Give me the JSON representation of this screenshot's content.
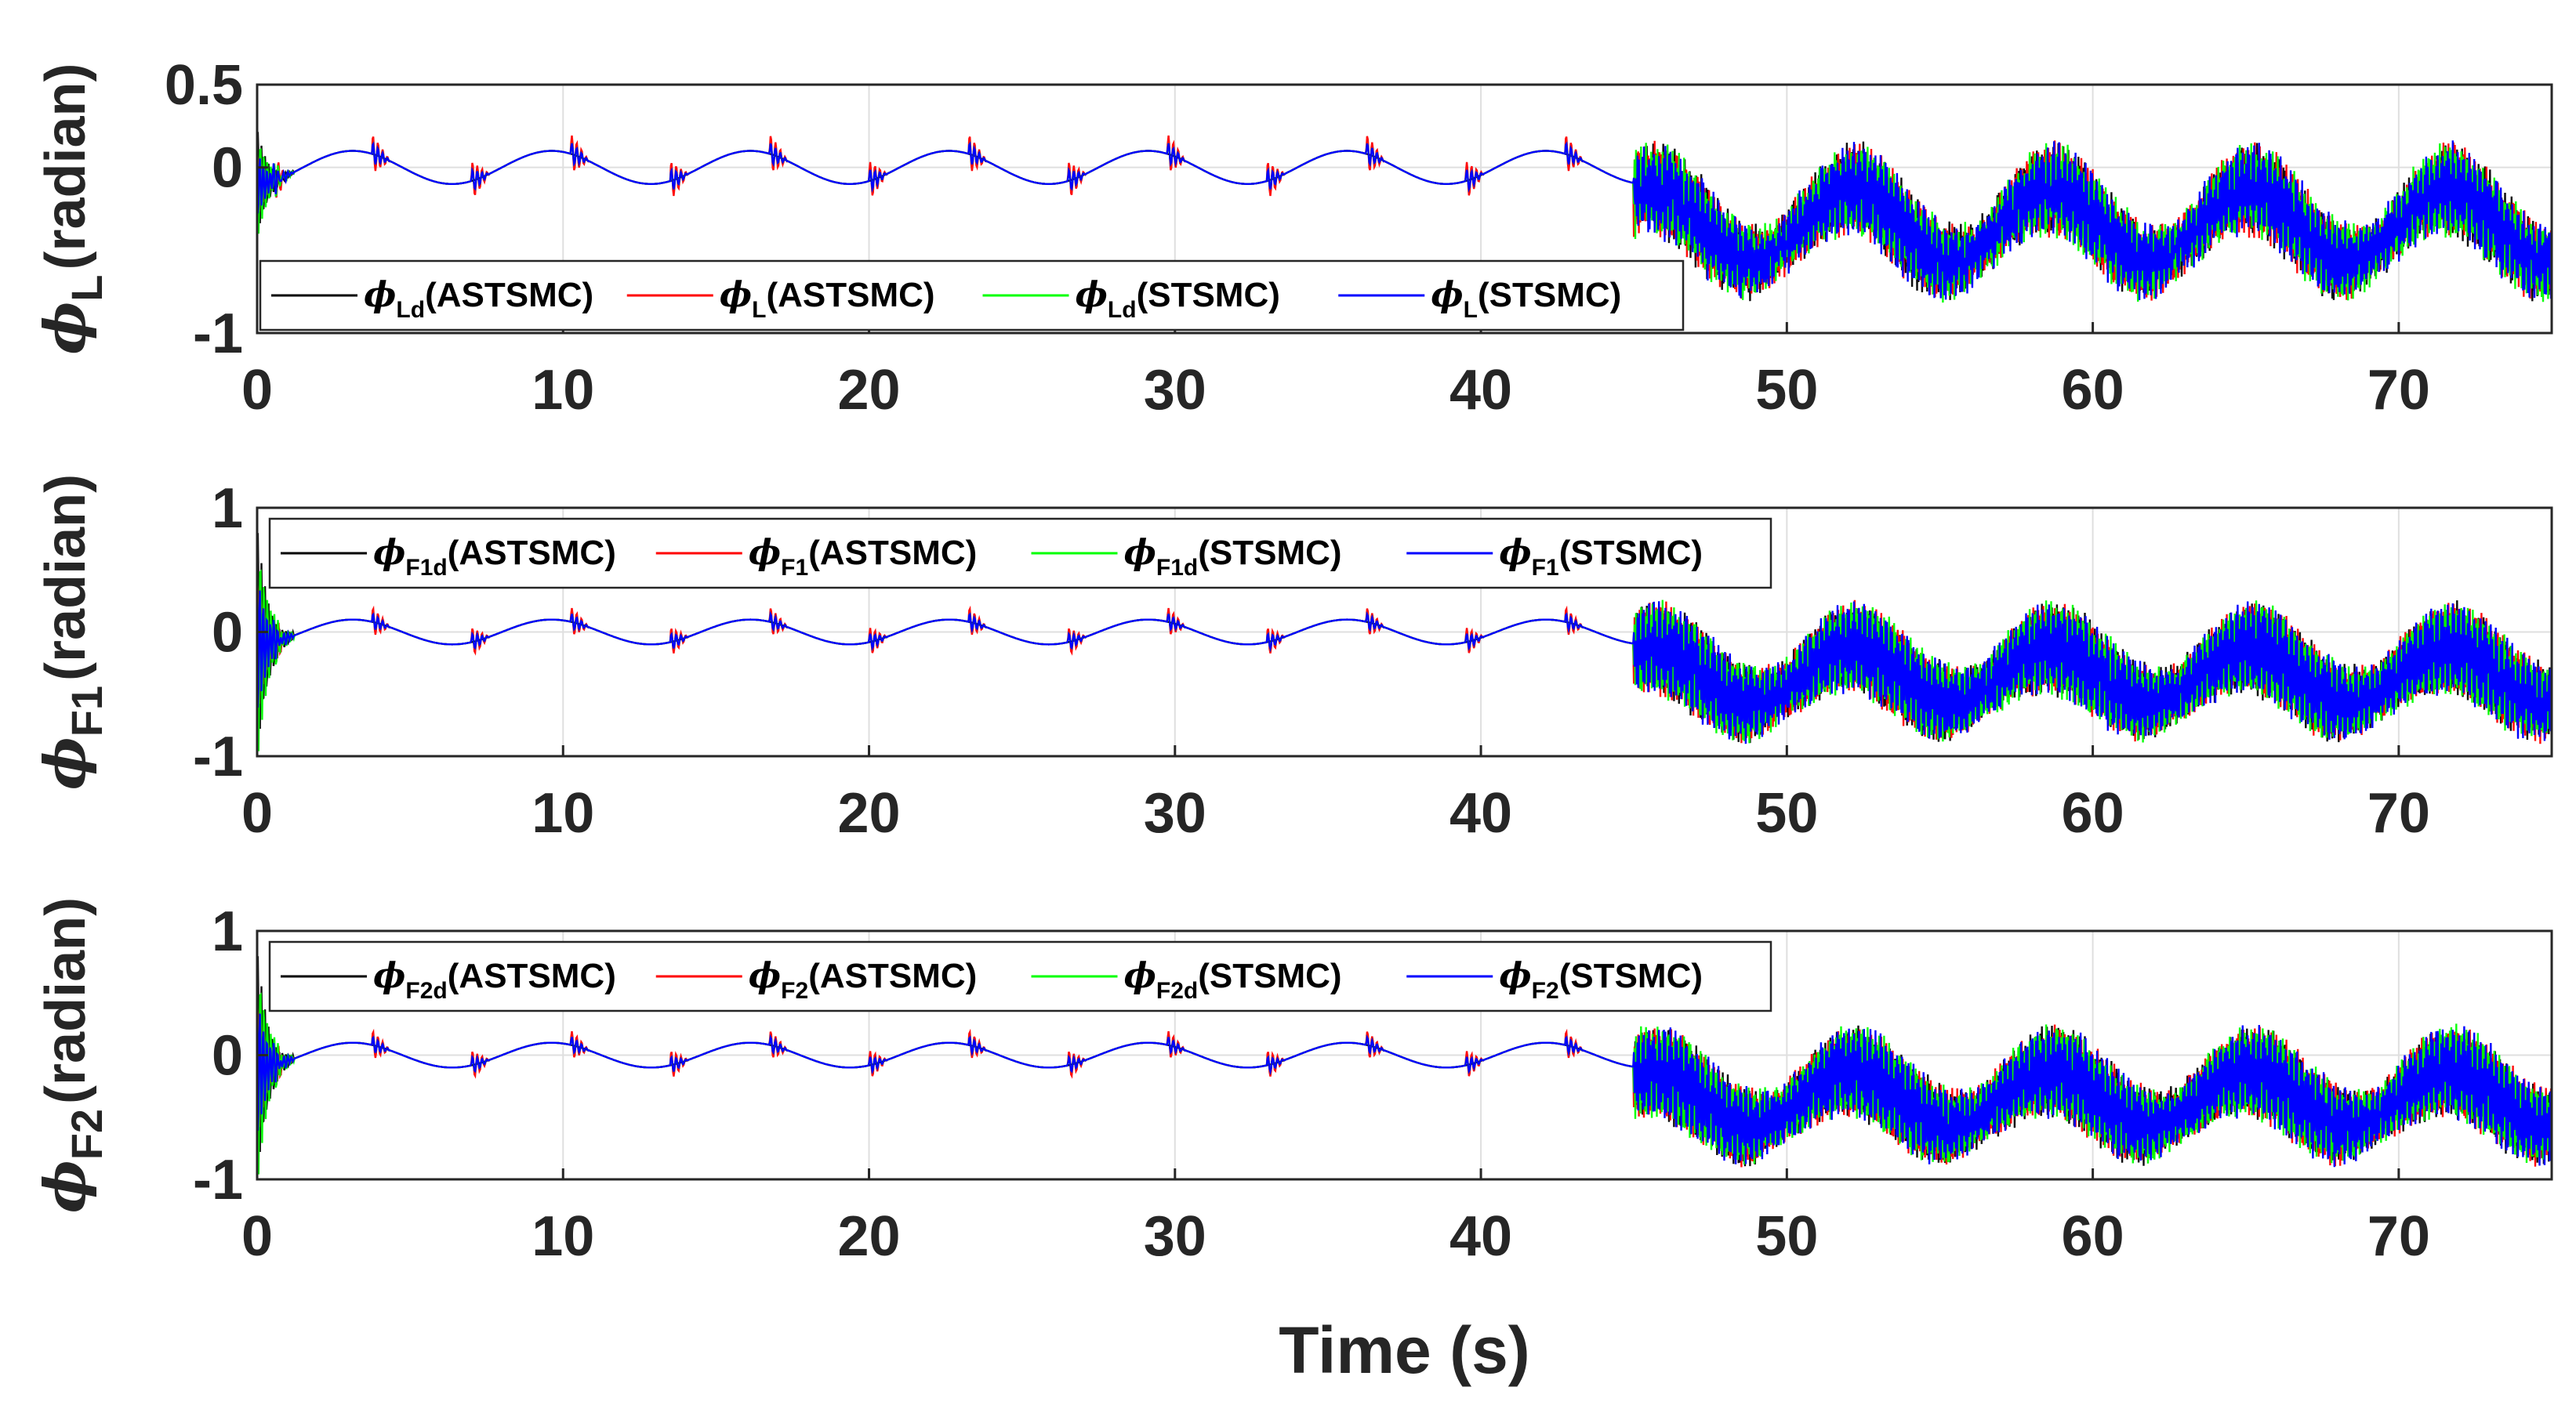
{
  "chart_data": [
    {
      "type": "line",
      "ylabel": {
        "symbol": "ϕ",
        "sub": "L",
        "text": "(radian)"
      },
      "ylim": [
        -1,
        0.5
      ],
      "yticks": [
        -1,
        0,
        0.5
      ],
      "ytick_labels": [
        "-1",
        "0",
        "0.5"
      ],
      "xlim": [
        0,
        75
      ],
      "xticks": [
        0,
        10,
        20,
        30,
        40,
        50,
        60,
        70
      ],
      "xtick_labels": [
        "0",
        "10",
        "20",
        "30",
        "40",
        "50",
        "60",
        "70"
      ],
      "grid": true,
      "legend_position": "bottom-left",
      "series": [
        {
          "name": "ϕLd(ASTSMC)",
          "sym": "ϕ",
          "sub": "Ld",
          "suffix": "(ASTSMC)",
          "color": "#000000"
        },
        {
          "name": "ϕL(ASTSMC)",
          "sym": "ϕ",
          "sub": "L",
          "suffix": "(ASTSMC)",
          "color": "#ff0000"
        },
        {
          "name": "ϕLd(STSMC)",
          "sym": "ϕ",
          "sub": "Ld",
          "suffix": "(STSMC)",
          "color": "#00ff00"
        },
        {
          "name": "ϕL(STSMC)",
          "sym": "ϕ",
          "sub": "L",
          "suffix": "(STSMC)",
          "color": "#0000ff"
        }
      ],
      "signal": {
        "period": 6.5,
        "amp_first": 0.1,
        "switch_time": 45,
        "center_second": -0.35,
        "amp_second": 0.22,
        "osc_band_second": 0.25,
        "transient_peak": 0.35
      }
    },
    {
      "type": "line",
      "ylabel": {
        "symbol": "ϕ",
        "sub": "F1",
        "text": "(radian)"
      },
      "ylim": [
        -1,
        1
      ],
      "yticks": [
        -1,
        0,
        1
      ],
      "ytick_labels": [
        "-1",
        "0",
        "1"
      ],
      "xlim": [
        0,
        75
      ],
      "xticks": [
        0,
        10,
        20,
        30,
        40,
        50,
        60,
        70
      ],
      "xtick_labels": [
        "0",
        "10",
        "20",
        "30",
        "40",
        "50",
        "60",
        "70"
      ],
      "grid": true,
      "legend_position": "top-left",
      "series": [
        {
          "name": "ϕF1d(ASTSMC)",
          "sym": "ϕ",
          "sub": "F1d",
          "suffix": "(ASTSMC)",
          "color": "#000000"
        },
        {
          "name": "ϕF1(ASTSMC)",
          "sym": "ϕ",
          "sub": "F1",
          "suffix": "(ASTSMC)",
          "color": "#ff0000"
        },
        {
          "name": "ϕF1d(STSMC)",
          "sym": "ϕ",
          "sub": "F1d",
          "suffix": "(STSMC)",
          "color": "#00ff00"
        },
        {
          "name": "ϕF1(STSMC)",
          "sym": "ϕ",
          "sub": "F1",
          "suffix": "(STSMC)",
          "color": "#0000ff"
        }
      ],
      "signal": {
        "period": 6.5,
        "amp_first": 0.1,
        "switch_time": 45,
        "center_second": -0.35,
        "amp_second": 0.22,
        "osc_band_second": 0.35,
        "transient_peak": 1.0
      }
    },
    {
      "type": "line",
      "ylabel": {
        "symbol": "ϕ",
        "sub": "F2",
        "text": "(radian)"
      },
      "ylim": [
        -1,
        1
      ],
      "yticks": [
        -1,
        0,
        1
      ],
      "ytick_labels": [
        "-1",
        "0",
        "1"
      ],
      "xlim": [
        0,
        75
      ],
      "xticks": [
        0,
        10,
        20,
        30,
        40,
        50,
        60,
        70
      ],
      "xtick_labels": [
        "0",
        "10",
        "20",
        "30",
        "40",
        "50",
        "60",
        "70"
      ],
      "xlabel": "Time (s)",
      "grid": true,
      "legend_position": "top-left",
      "series": [
        {
          "name": "ϕF2d(ASTSMC)",
          "sym": "ϕ",
          "sub": "F2d",
          "suffix": "(ASTSMC)",
          "color": "#000000"
        },
        {
          "name": "ϕF2(ASTSMC)",
          "sym": "ϕ",
          "sub": "F2",
          "suffix": "(ASTSMC)",
          "color": "#ff0000"
        },
        {
          "name": "ϕF2d(STSMC)",
          "sym": "ϕ",
          "sub": "F2d",
          "suffix": "(STSMC)",
          "color": "#00ff00"
        },
        {
          "name": "ϕF2(STSMC)",
          "sym": "ϕ",
          "sub": "F2",
          "suffix": "(STSMC)",
          "color": "#0000ff"
        }
      ],
      "signal": {
        "period": 6.5,
        "amp_first": 0.1,
        "switch_time": 45,
        "center_second": -0.35,
        "amp_second": 0.22,
        "osc_band_second": 0.35,
        "transient_peak": 1.0
      }
    }
  ]
}
